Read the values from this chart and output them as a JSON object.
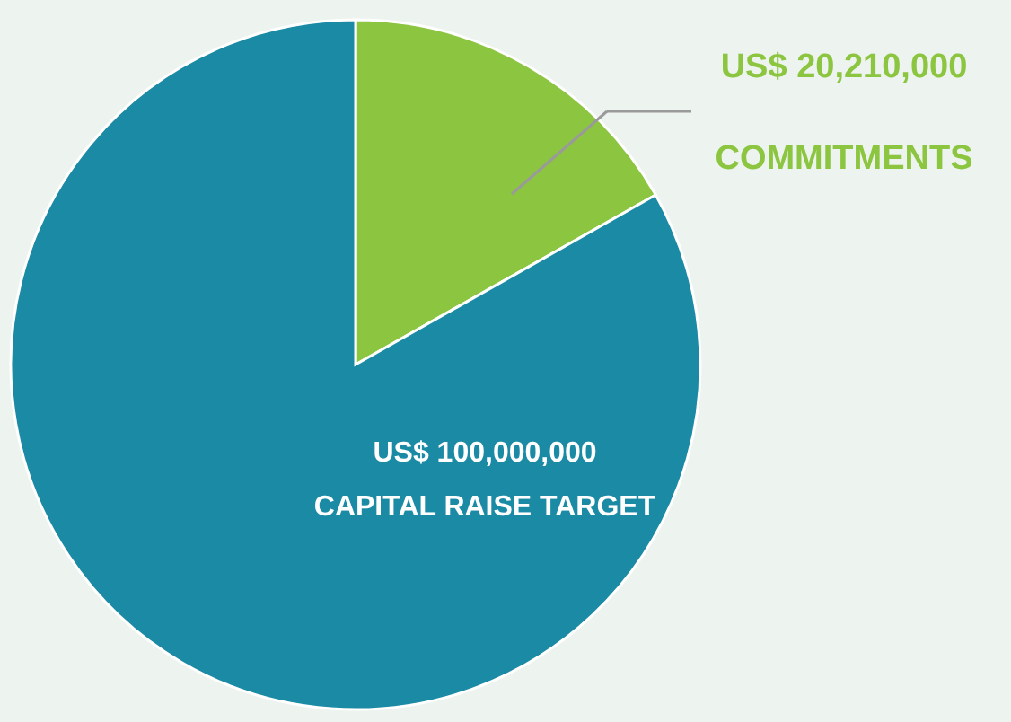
{
  "chart_data": {
    "type": "pie",
    "categories": [
      "COMMITMENTS",
      "CAPITAL RAISE TARGET"
    ],
    "values": [
      20210000,
      100000000
    ],
    "colors": [
      "#8cc540",
      "#1a8aa5"
    ],
    "value_labels": [
      "US$ 20,210,000",
      "US$ 100,000,000"
    ]
  }
}
